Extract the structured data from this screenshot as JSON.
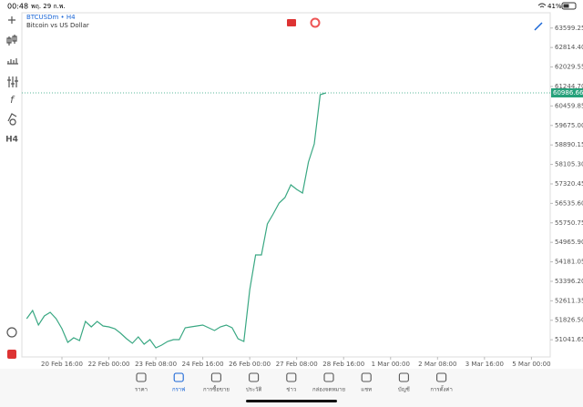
{
  "status_bar": {
    "time": "00:48",
    "date": "พฤ. 29 ก.พ.",
    "battery": "41%"
  },
  "chart_header": {
    "symbol": "BTCUSDm • H4",
    "description": "Bitcoin vs US Dollar"
  },
  "toolbar": {
    "timeframe": "H4"
  },
  "chart_data": {
    "type": "line",
    "x": [
      -6,
      -5,
      -4,
      -3,
      -2,
      -1,
      0,
      1,
      2,
      3,
      4,
      5,
      6,
      7,
      8,
      9,
      10,
      11,
      12,
      13,
      14,
      15,
      16,
      17,
      18,
      19,
      20,
      21,
      22,
      23,
      24,
      25,
      26,
      27,
      28,
      29,
      30,
      31,
      32,
      33,
      34,
      35,
      36,
      37,
      38,
      39,
      40,
      41,
      42,
      43,
      44,
      45
    ],
    "series": [
      {
        "color": "#3aa883",
        "values": [
          51890,
          52220,
          51633,
          52000,
          52147,
          51890,
          51487,
          50936,
          51120,
          51010,
          51780,
          51560,
          51780,
          51597,
          51560,
          51487,
          51303,
          51083,
          50900,
          51156,
          50863,
          51046,
          50716,
          50826,
          50973,
          51046,
          51046,
          51523,
          51560,
          51597,
          51633,
          51523,
          51413,
          51560,
          51633,
          51523,
          51083,
          50973,
          53064,
          54458,
          54458,
          55705,
          56108,
          56548,
          56768,
          57282,
          57099,
          56952,
          58199,
          58933,
          60914,
          60986.66
        ]
      }
    ],
    "xlim": [
      -6.83,
      83.2
    ],
    "xticks": [
      {
        "value": 0,
        "label": "20 Feb 16:00"
      },
      {
        "value": 8,
        "label": "22 Feb 00:00"
      },
      {
        "value": 16,
        "label": "23 Feb 08:00"
      },
      {
        "value": 24,
        "label": "24 Feb 16:00"
      },
      {
        "value": 32,
        "label": "26 Feb 00:00"
      },
      {
        "value": 40,
        "label": "27 Feb 08:00"
      },
      {
        "value": 48,
        "label": "28 Feb 16:00"
      },
      {
        "value": 56,
        "label": "1 Mar 00:00"
      },
      {
        "value": 64,
        "label": "2 Mar 08:00"
      },
      {
        "value": 72,
        "label": "3 Mar 16:00"
      },
      {
        "value": 80,
        "label": "5 Mar 00:00"
      }
    ],
    "ylim": [
      50350,
      64215
    ],
    "yticks": [
      63599.25,
      {
        "value": 62814.4,
        "label": "62814.40"
      },
      62029.55,
      {
        "value": 61244.7,
        "label": "61244.70"
      },
      60459.85,
      {
        "value": 59675,
        "label": "59675.00"
      },
      58890.15,
      {
        "value": 58105.3,
        "label": "58105.30"
      },
      57320.45,
      {
        "value": 56535.6,
        "label": "56535.60"
      },
      55750.75,
      {
        "value": 54965.9,
        "label": "54965.90"
      },
      54181.05,
      {
        "value": 53396.2,
        "label": "53396.20"
      },
      52611.35,
      {
        "value": 51826.5,
        "label": "51826.50"
      },
      51041.65
    ],
    "current_price": 60986.66,
    "current_price_color": "#26a17b"
  },
  "nav": {
    "items": [
      "ราคา",
      "กราฟ",
      "การซื้อขาย",
      "ประวัติ",
      "ข่าว",
      "กล่องจดหมาย",
      "แชท",
      "บัญชี",
      "การตั้งค่า"
    ],
    "active": 1
  }
}
